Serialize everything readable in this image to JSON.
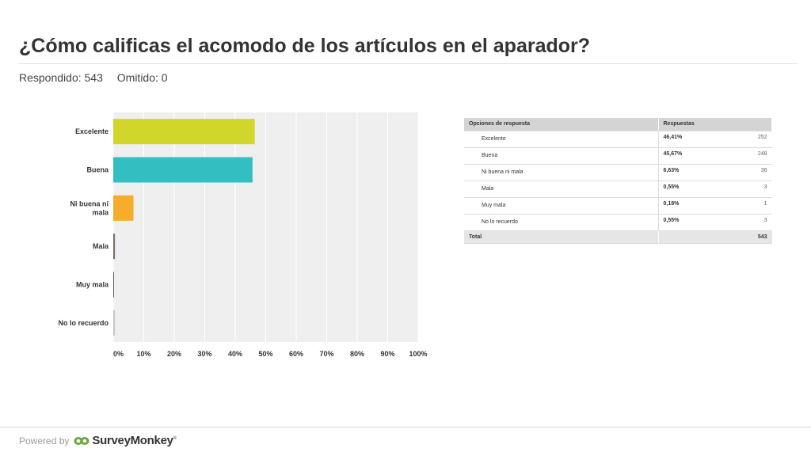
{
  "page": {
    "title": "¿Cómo calificas el acomodo de los artículos en el aparador?",
    "answered": "Respondido: 543",
    "skipped": "Omitido: 0"
  },
  "chart_data": {
    "type": "bar",
    "orientation": "horizontal",
    "categories": [
      "Excelente",
      "Buena",
      "Ni buena ni mala",
      "Mala",
      "Muy mala",
      "No lo recuerdo"
    ],
    "category_lines": [
      [
        "Excelente"
      ],
      [
        "Buena"
      ],
      [
        "Ni buena ni",
        "mala"
      ],
      [
        "Mala"
      ],
      [
        "Muy mala"
      ],
      [
        "No lo recuerdo"
      ]
    ],
    "values": [
      46.41,
      45.67,
      6.63,
      0.55,
      0.18,
      0.55
    ],
    "colors": [
      "#d0d62a",
      "#33bfc1",
      "#f5ad2b",
      "#7b6f60",
      "#5c5c5c",
      "#c8c8c8"
    ],
    "xlim": [
      0,
      100
    ],
    "xticks": [
      "0%",
      "10%",
      "20%",
      "30%",
      "40%",
      "50%",
      "60%",
      "70%",
      "80%",
      "90%",
      "100%"
    ],
    "grid": true,
    "legend": "none"
  },
  "table": {
    "headers": [
      "Opciones de respuesta",
      "Respuestas"
    ],
    "rows": [
      {
        "option": "Excelente",
        "percent": "46,41%",
        "count": "252"
      },
      {
        "option": "Buena",
        "percent": "45,67%",
        "count": "248"
      },
      {
        "option": "Ni buena ni mala",
        "percent": "6,63%",
        "count": "36"
      },
      {
        "option": "Mala",
        "percent": "0,55%",
        "count": "3"
      },
      {
        "option": "Muy mala",
        "percent": "0,18%",
        "count": "1"
      },
      {
        "option": "No lo recuerdo",
        "percent": "0,55%",
        "count": "3"
      }
    ],
    "total_label": "Total",
    "total_count": "543"
  },
  "footer": {
    "powered_by": "Powered by",
    "brand": "SurveyMonkey",
    "trademark": "®",
    "icon": "surveymonkey-logo-icon"
  }
}
